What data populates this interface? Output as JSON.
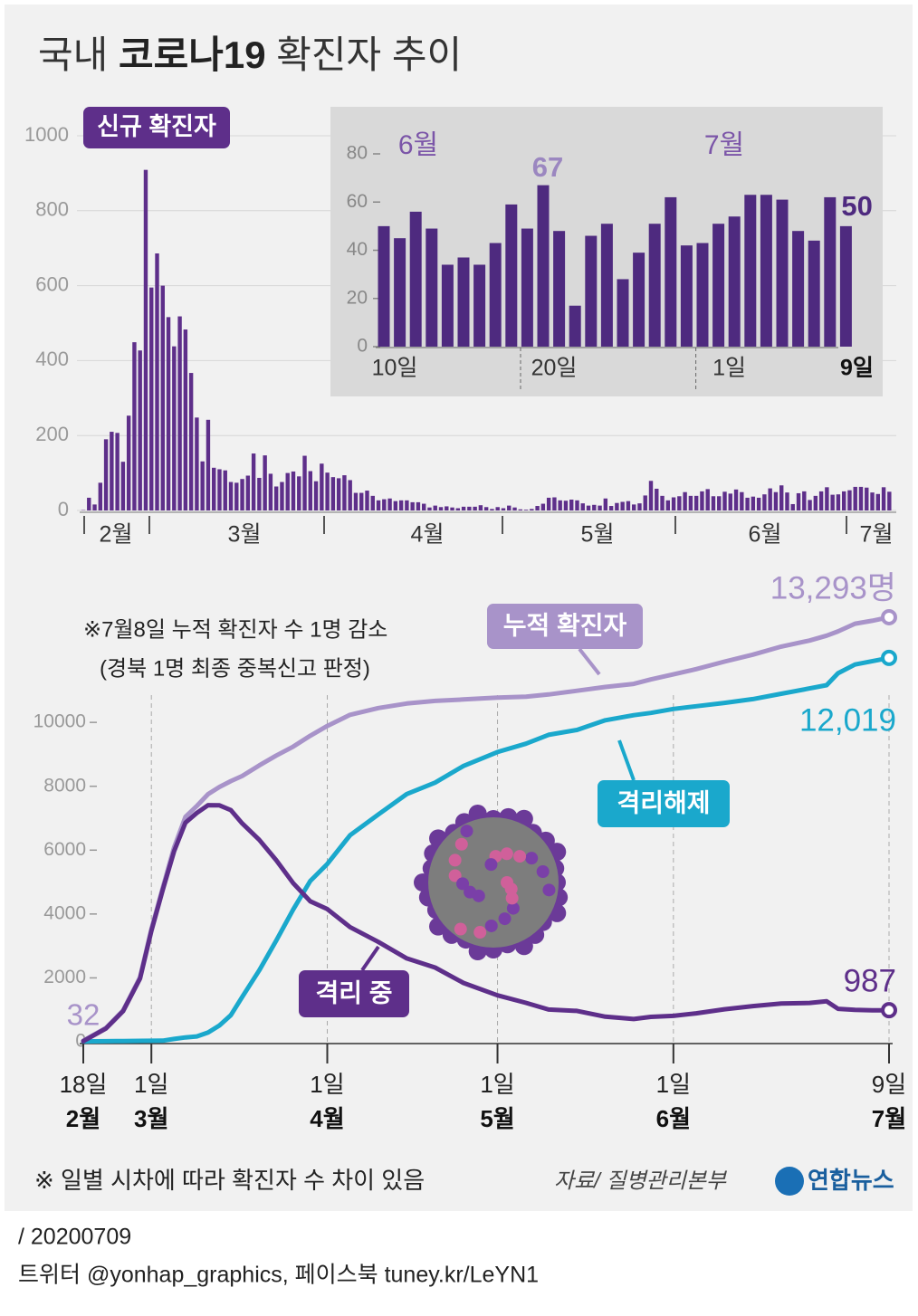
{
  "title": {
    "lead": "국내",
    "highlight": "코로나19",
    "rest": "확진자 추이"
  },
  "chart_data": [
    {
      "type": "bar",
      "label": "신규 확진자",
      "color": "#5e2f8a",
      "values": [
        1,
        34,
        16,
        74,
        190,
        210,
        207,
        130,
        253,
        449,
        427,
        909,
        595,
        686,
        600,
        516,
        438,
        518,
        483,
        367,
        248,
        131,
        242,
        114,
        110,
        107,
        76,
        74,
        84,
        93,
        152,
        87,
        147,
        98,
        64,
        76,
        100,
        104,
        91,
        146,
        105,
        78,
        125,
        101,
        89,
        86,
        94,
        81,
        47,
        47,
        53,
        39,
        27,
        30,
        32,
        25,
        27,
        27,
        22,
        22,
        18,
        8,
        13,
        9,
        11,
        8,
        6,
        10,
        10,
        10,
        14,
        9,
        4,
        9,
        6,
        13,
        8,
        3,
        2,
        4,
        12,
        18,
        34,
        35,
        27,
        26,
        29,
        27,
        19,
        13,
        15,
        13,
        32,
        12,
        20,
        23,
        25,
        16,
        19,
        40,
        79,
        58,
        39,
        27,
        35,
        38,
        49,
        39,
        39,
        51,
        57,
        38,
        38,
        50,
        45,
        56,
        49,
        34,
        37,
        34,
        43,
        59,
        49,
        67,
        48,
        17,
        46,
        51,
        28,
        39,
        51,
        62,
        42,
        43,
        51,
        54,
        63,
        63,
        61,
        48,
        44,
        62,
        50
      ],
      "month_labels": [
        "2월",
        "3월",
        "4월",
        "5월",
        "6월",
        "7월"
      ],
      "ylim": [
        0,
        1000
      ],
      "yticks": [
        0,
        200,
        400,
        600,
        800,
        1000
      ],
      "grid": true
    },
    {
      "type": "bar",
      "color": "#4e2a7f",
      "categories": [
        "10일",
        null,
        null,
        null,
        null,
        null,
        null,
        null,
        null,
        null,
        "20일",
        null,
        null,
        null,
        null,
        null,
        null,
        null,
        null,
        null,
        null,
        "1일",
        null,
        null,
        null,
        null,
        null,
        null,
        null,
        "9일"
      ],
      "values": [
        50,
        45,
        56,
        49,
        34,
        37,
        34,
        43,
        59,
        49,
        67,
        48,
        17,
        46,
        51,
        28,
        39,
        51,
        62,
        42,
        43,
        51,
        54,
        63,
        63,
        61,
        48,
        44,
        62,
        50
      ],
      "month_labels": [
        "6월",
        "7월"
      ],
      "ylim": [
        0,
        80
      ],
      "yticks": [
        0,
        20,
        40,
        60,
        80
      ]
    },
    {
      "type": "line",
      "annotations": [
        "※7월8일 누적 확진자 수 1명 감소",
        "(경북 1명 최종 중복신고 판정)"
      ],
      "x": [
        "02-18",
        "02-22",
        "02-25",
        "02-28",
        "03-01",
        "03-03",
        "03-05",
        "03-07",
        "03-09",
        "03-11",
        "03-13",
        "03-15",
        "03-17",
        "03-20",
        "03-23",
        "03-26",
        "03-29",
        "04-01",
        "04-05",
        "04-10",
        "04-15",
        "04-20",
        "04-25",
        "05-01",
        "05-06",
        "05-10",
        "05-15",
        "05-20",
        "05-25",
        "05-28",
        "06-01",
        "06-05",
        "06-10",
        "06-15",
        "06-20",
        "06-25",
        "06-28",
        "06-30",
        "07-03",
        "07-06",
        "07-09"
      ],
      "xlim": [
        "02-18",
        "07-09"
      ],
      "xticks": [
        {
          "value": "02-18",
          "label": "18일"
        },
        {
          "value": "03-01",
          "label": "1일"
        },
        {
          "value": "04-01",
          "label": "1일"
        },
        {
          "value": "05-01",
          "label": "1일"
        },
        {
          "value": "06-01",
          "label": "1일"
        },
        {
          "value": "07-09",
          "label": "9일"
        }
      ],
      "xtick_months": [
        "2월",
        "3월",
        "4월",
        "5월",
        "6월",
        "7월"
      ],
      "ylim": [
        0,
        14000
      ],
      "yticks": [
        0,
        2000,
        4000,
        6000,
        8000,
        10000
      ],
      "series": [
        {
          "name": "누적 확진자",
          "color": "#a893c9",
          "values": [
            32,
            433,
            977,
            2022,
            3526,
            4812,
            6088,
            7041,
            7382,
            7755,
            7979,
            8162,
            8320,
            8652,
            8961,
            9241,
            9583,
            9887,
            10237,
            10450,
            10591,
            10674,
            10718,
            10774,
            10806,
            10874,
            10991,
            11110,
            11206,
            11344,
            11503,
            11668,
            11902,
            12121,
            12373,
            12563,
            12715,
            12850,
            13091,
            13181,
            13293
          ],
          "value_labels": [
            null,
            null,
            null,
            null,
            null,
            null,
            null,
            null,
            null,
            null,
            null,
            null,
            null,
            null,
            null,
            null,
            null,
            null,
            null,
            null,
            null,
            null,
            null,
            null,
            null,
            null,
            null,
            null,
            null,
            null,
            null,
            null,
            null,
            null,
            null,
            null,
            null,
            null,
            null,
            null,
            "13,293명"
          ]
        },
        {
          "name": "격리해제",
          "color": "#1aa8cc",
          "values": [
            12,
            16,
            22,
            27,
            30,
            34,
            88,
            135,
            166,
            288,
            510,
            834,
            1401,
            2233,
            3166,
            4144,
            5033,
            5567,
            6463,
            7117,
            7757,
            8114,
            8635,
            9072,
            9333,
            9610,
            9762,
            10066,
            10226,
            10295,
            10422,
            10506,
            10611,
            10730,
            10898,
            11065,
            11165,
            11537,
            11811,
            11914,
            12019
          ],
          "value_labels": [
            null,
            null,
            null,
            null,
            null,
            null,
            null,
            null,
            null,
            null,
            null,
            null,
            null,
            null,
            null,
            null,
            null,
            null,
            null,
            null,
            null,
            null,
            null,
            null,
            null,
            null,
            null,
            null,
            null,
            null,
            null,
            null,
            null,
            null,
            null,
            null,
            null,
            null,
            null,
            null,
            "12,019"
          ]
        },
        {
          "name": "격리 중",
          "color": "#5e2f8a",
          "values": [
            20,
            417,
            955,
            1982,
            3470,
            4750,
            5965,
            6858,
            7165,
            7407,
            7402,
            7253,
            6838,
            6325,
            5684,
            4966,
            4398,
            4155,
            3591,
            3125,
            2609,
            2324,
            1843,
            1454,
            1218,
            1008,
            967,
            786,
            711,
            780,
            810,
            889,
            1018,
            1118,
            1195,
            1216,
            1268,
            1031,
            997,
            982,
            987
          ]
        }
      ]
    }
  ],
  "footer": {
    "note": "※ 일별 시차에 따라 확진자 수 차이 있음",
    "source": "자료/ 질병관리본부",
    "brand": "연합뉴스",
    "date": "/ 20200709",
    "social": "트위터 @yonhap_graphics, 페이스북 tuney.kr/LeYN1"
  }
}
